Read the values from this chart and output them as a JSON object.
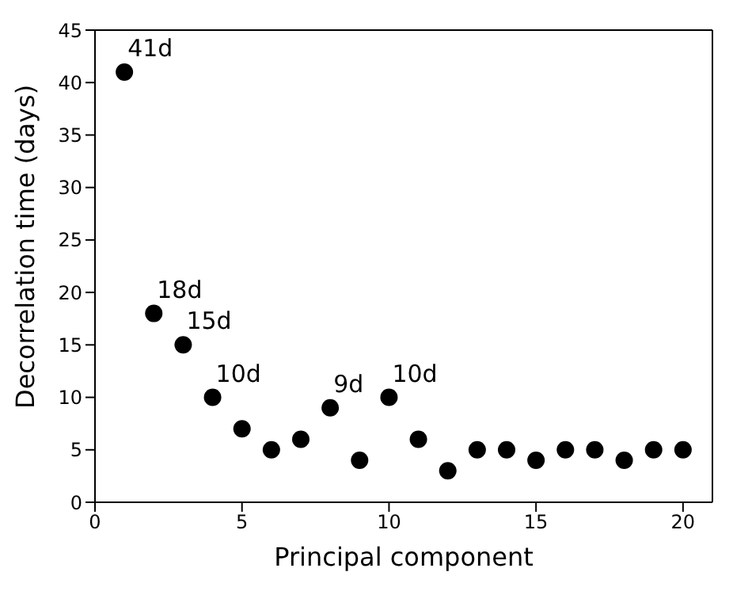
{
  "chart_data": {
    "type": "scatter",
    "xlabel": "Principal component",
    "ylabel": "Decorrelation time (days)",
    "x": [
      1,
      2,
      3,
      4,
      5,
      6,
      7,
      8,
      9,
      10,
      11,
      12,
      13,
      14,
      15,
      16,
      17,
      18,
      19,
      20
    ],
    "series": [
      {
        "color": "#000000",
        "values": [
          41,
          18,
          15,
          10,
          7,
          5,
          6,
          9,
          4,
          10,
          6,
          3,
          5,
          5,
          4,
          5,
          5,
          4,
          5,
          5
        ]
      }
    ],
    "xlim": [
      0,
      21
    ],
    "xticks": [
      0,
      5,
      10,
      15,
      20
    ],
    "ylim": [
      0,
      45
    ],
    "yticks": [
      0,
      5,
      10,
      15,
      20,
      25,
      30,
      35,
      40,
      45
    ],
    "marker": "circle",
    "annotations": [
      {
        "text": "41d",
        "x": 1,
        "y": 41
      },
      {
        "text": "18d",
        "x": 2,
        "y": 18
      },
      {
        "text": "15d",
        "x": 3,
        "y": 15
      },
      {
        "text": "10d",
        "x": 4,
        "y": 10
      },
      {
        "text": "9d",
        "x": 8,
        "y": 9
      },
      {
        "text": "10d",
        "x": 10,
        "y": 10
      }
    ]
  }
}
